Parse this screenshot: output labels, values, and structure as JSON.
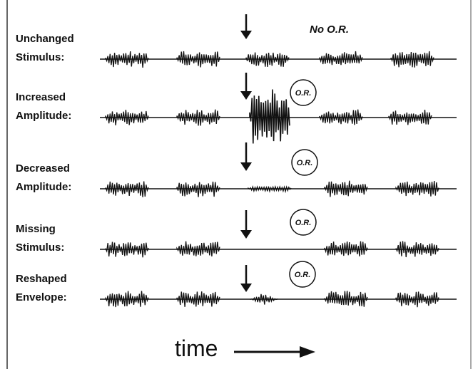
{
  "rows": [
    {
      "label": [
        "Unchanged",
        "Stimulus:"
      ]
    },
    {
      "label": [
        "Increased",
        "Amplitude:"
      ],
      "or": "O.R."
    },
    {
      "label": [
        "Decreased",
        "Amplitude:"
      ],
      "or": "O.R."
    },
    {
      "label": [
        "Missing",
        "Stimulus:"
      ],
      "or": "O.R."
    },
    {
      "label": [
        "Reshaped",
        "Envelope:"
      ],
      "or": "O.R."
    }
  ],
  "annotations": {
    "no_or": "No O.R.",
    "time": "time"
  }
}
